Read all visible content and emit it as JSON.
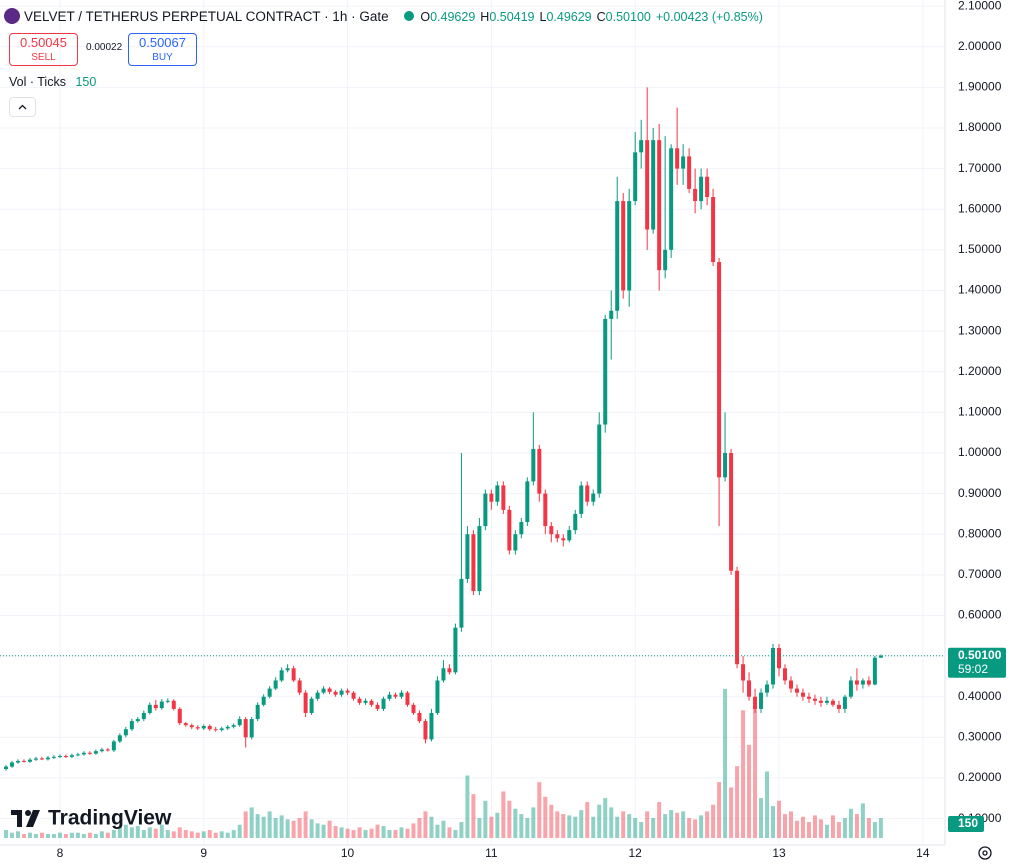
{
  "header": {
    "title": "VELVET / TETHERUS PERPETUAL CONTRACT · 1h · Gate",
    "legend": [
      {
        "key": "O",
        "value": "0.49629"
      },
      {
        "key": "H",
        "value": "0.50419"
      },
      {
        "key": "L",
        "value": "0.49629"
      },
      {
        "key": "C",
        "value": "0.50100"
      }
    ],
    "change": "+0.00423 (+0.85%)",
    "sell": {
      "price": "0.50045",
      "label": "SELL"
    },
    "spread": "0.00022",
    "buy": {
      "price": "0.50067",
      "label": "BUY"
    },
    "volume_legend": "Vol · Ticks",
    "logo": "TradingView",
    "countdown": "59:02"
  },
  "chart_data": {
    "type": "candlestick",
    "up_color": "#089981",
    "down_color": "#f23645",
    "grid": true,
    "xlim": [
      -10,
      147.7
    ],
    "xticks": [
      {
        "value": 0,
        "label": "8"
      },
      {
        "value": 24,
        "label": "9"
      },
      {
        "value": 48,
        "label": "10"
      },
      {
        "value": 72,
        "label": "11"
      },
      {
        "value": 96,
        "label": "12"
      },
      {
        "value": 120,
        "label": "13"
      },
      {
        "value": 144,
        "label": "14"
      }
    ],
    "ylim": [
      0.035,
      2.115
    ],
    "yticks": [
      {
        "value": 0.1,
        "label": "0.10000"
      },
      {
        "value": 0.2,
        "label": "0.20000"
      },
      {
        "value": 0.3,
        "label": "0.30000"
      },
      {
        "value": 0.4,
        "label": "0.40000"
      },
      {
        "value": 0.5,
        "label": "0.50000"
      },
      {
        "value": 0.6,
        "label": "0.60000"
      },
      {
        "value": 0.7,
        "label": "0.70000"
      },
      {
        "value": 0.8,
        "label": "0.80000"
      },
      {
        "value": 0.9,
        "label": "0.90000"
      },
      {
        "value": 1.0,
        "label": "1.00000"
      },
      {
        "value": 1.1,
        "label": "1.10000"
      },
      {
        "value": 1.2,
        "label": "1.20000"
      },
      {
        "value": 1.3,
        "label": "1.30000"
      },
      {
        "value": 1.4,
        "label": "1.40000"
      },
      {
        "value": 1.5,
        "label": "1.50000"
      },
      {
        "value": 1.6,
        "label": "1.60000"
      },
      {
        "value": 1.7,
        "label": "1.70000"
      },
      {
        "value": 1.8,
        "label": "1.80000"
      },
      {
        "value": 1.9,
        "label": "1.90000"
      },
      {
        "value": 2.0,
        "label": "2.00000"
      },
      {
        "value": 2.1,
        "label": "2.10000"
      }
    ],
    "volume_ylim": [
      0,
      6300
    ],
    "last_price": {
      "value": 0.501,
      "label": "0.50100"
    },
    "x": [
      -9,
      -8,
      -7,
      -6,
      -5,
      -4,
      -3,
      -2,
      -1,
      0,
      1,
      2,
      3,
      4,
      5,
      6,
      7,
      8,
      9,
      10,
      11,
      12,
      13,
      14,
      15,
      16,
      17,
      18,
      19,
      20,
      21,
      22,
      23,
      24,
      25,
      26,
      27,
      28,
      29,
      30,
      31,
      32,
      33,
      34,
      35,
      36,
      37,
      38,
      39,
      40,
      41,
      42,
      43,
      44,
      45,
      46,
      47,
      48,
      49,
      50,
      51,
      52,
      53,
      54,
      55,
      56,
      57,
      58,
      59,
      60,
      61,
      62,
      63,
      64,
      65,
      66,
      67,
      68,
      69,
      70,
      71,
      72,
      73,
      74,
      75,
      76,
      77,
      78,
      79,
      80,
      81,
      82,
      83,
      84,
      85,
      86,
      87,
      88,
      89,
      90,
      91,
      92,
      93,
      94,
      95,
      96,
      97,
      98,
      99,
      100,
      101,
      102,
      103,
      104,
      105,
      106,
      107,
      108,
      109,
      110,
      111,
      112,
      113,
      114,
      115,
      116,
      117,
      118,
      119,
      120,
      121,
      122,
      123,
      124,
      125,
      126,
      127,
      128,
      129,
      130,
      131,
      132,
      133,
      134,
      135,
      136,
      137
    ],
    "open": [
      0.222,
      0.228,
      0.238,
      0.242,
      0.24,
      0.245,
      0.248,
      0.246,
      0.25,
      0.252,
      0.254,
      0.252,
      0.256,
      0.258,
      0.262,
      0.26,
      0.266,
      0.27,
      0.268,
      0.29,
      0.305,
      0.32,
      0.34,
      0.345,
      0.36,
      0.38,
      0.372,
      0.388,
      0.39,
      0.37,
      0.335,
      0.33,
      0.325,
      0.322,
      0.328,
      0.32,
      0.318,
      0.322,
      0.326,
      0.33,
      0.345,
      0.3,
      0.345,
      0.38,
      0.4,
      0.42,
      0.44,
      0.465,
      0.47,
      0.44,
      0.41,
      0.36,
      0.395,
      0.41,
      0.42,
      0.412,
      0.405,
      0.415,
      0.41,
      0.395,
      0.385,
      0.39,
      0.38,
      0.37,
      0.395,
      0.405,
      0.4,
      0.41,
      0.38,
      0.36,
      0.34,
      0.295,
      0.36,
      0.44,
      0.47,
      0.46,
      0.57,
      0.69,
      0.8,
      0.66,
      0.82,
      0.9,
      0.88,
      0.92,
      0.86,
      0.76,
      0.8,
      0.83,
      0.93,
      1.01,
      0.9,
      0.82,
      0.8,
      0.79,
      0.785,
      0.81,
      0.85,
      0.92,
      0.88,
      0.9,
      1.07,
      1.33,
      1.35,
      1.62,
      1.4,
      1.62,
      1.74,
      1.77,
      1.55,
      1.77,
      1.45,
      1.5,
      1.75,
      1.7,
      1.73,
      1.65,
      1.62,
      1.68,
      1.63,
      1.47,
      0.94,
      1.0,
      0.71,
      0.48,
      0.44,
      0.4,
      0.37,
      0.41,
      0.43,
      0.52,
      0.47,
      0.44,
      0.42,
      0.41,
      0.4,
      0.395,
      0.39,
      0.385,
      0.39,
      0.38,
      0.37,
      0.4,
      0.44,
      0.43,
      0.44,
      0.43,
      0.496
    ],
    "high": [
      0.232,
      0.242,
      0.246,
      0.246,
      0.249,
      0.252,
      0.252,
      0.254,
      0.256,
      0.258,
      0.258,
      0.26,
      0.262,
      0.266,
      0.266,
      0.27,
      0.274,
      0.274,
      0.294,
      0.31,
      0.326,
      0.346,
      0.35,
      0.366,
      0.386,
      0.392,
      0.394,
      0.396,
      0.394,
      0.374,
      0.338,
      0.334,
      0.33,
      0.332,
      0.332,
      0.326,
      0.326,
      0.33,
      0.334,
      0.352,
      0.35,
      0.35,
      0.386,
      0.406,
      0.426,
      0.448,
      0.472,
      0.48,
      0.476,
      0.446,
      0.416,
      0.4,
      0.416,
      0.426,
      0.424,
      0.416,
      0.42,
      0.42,
      0.414,
      0.4,
      0.396,
      0.394,
      0.386,
      0.4,
      0.412,
      0.41,
      0.416,
      0.414,
      0.385,
      0.366,
      0.345,
      0.37,
      0.45,
      0.49,
      0.48,
      0.58,
      1.0,
      0.82,
      0.81,
      0.84,
      0.91,
      0.91,
      0.93,
      0.93,
      0.87,
      0.81,
      0.84,
      0.94,
      1.1,
      1.02,
      0.91,
      0.83,
      0.81,
      0.8,
      0.82,
      0.86,
      0.93,
      0.93,
      0.91,
      1.1,
      1.34,
      1.4,
      1.68,
      1.64,
      1.65,
      1.79,
      1.82,
      1.9,
      1.8,
      1.81,
      1.78,
      1.76,
      1.85,
      1.76,
      1.75,
      1.7,
      1.7,
      1.7,
      1.65,
      1.48,
      1.1,
      1.01,
      0.72,
      0.5,
      0.46,
      0.42,
      0.42,
      0.44,
      0.53,
      0.53,
      0.48,
      0.45,
      0.43,
      0.42,
      0.41,
      0.405,
      0.4,
      0.4,
      0.395,
      0.39,
      0.405,
      0.45,
      0.47,
      0.445,
      0.45,
      0.5,
      0.504
    ],
    "low": [
      0.218,
      0.225,
      0.235,
      0.238,
      0.237,
      0.242,
      0.244,
      0.243,
      0.247,
      0.249,
      0.249,
      0.249,
      0.253,
      0.255,
      0.257,
      0.257,
      0.263,
      0.265,
      0.264,
      0.286,
      0.3,
      0.316,
      0.336,
      0.34,
      0.356,
      0.366,
      0.368,
      0.384,
      0.366,
      0.33,
      0.326,
      0.32,
      0.318,
      0.318,
      0.316,
      0.314,
      0.314,
      0.318,
      0.322,
      0.326,
      0.275,
      0.295,
      0.34,
      0.376,
      0.396,
      0.416,
      0.436,
      0.46,
      0.436,
      0.404,
      0.35,
      0.355,
      0.39,
      0.406,
      0.406,
      0.4,
      0.4,
      0.404,
      0.39,
      0.38,
      0.38,
      0.375,
      0.365,
      0.365,
      0.39,
      0.395,
      0.395,
      0.375,
      0.355,
      0.335,
      0.285,
      0.29,
      0.355,
      0.435,
      0.455,
      0.455,
      0.56,
      0.68,
      0.65,
      0.65,
      0.81,
      0.86,
      0.87,
      0.85,
      0.75,
      0.75,
      0.79,
      0.82,
      0.92,
      0.88,
      0.8,
      0.78,
      0.78,
      0.77,
      0.78,
      0.8,
      0.84,
      0.87,
      0.87,
      0.89,
      1.05,
      1.23,
      1.33,
      1.38,
      1.36,
      1.61,
      1.7,
      1.5,
      1.54,
      1.4,
      1.43,
      1.48,
      1.66,
      1.66,
      1.64,
      1.59,
      1.6,
      1.61,
      1.46,
      0.82,
      0.93,
      0.7,
      0.47,
      0.41,
      0.39,
      0.36,
      0.36,
      0.4,
      0.42,
      0.45,
      0.43,
      0.41,
      0.4,
      0.39,
      0.385,
      0.38,
      0.375,
      0.38,
      0.375,
      0.36,
      0.36,
      0.395,
      0.415,
      0.42,
      0.425,
      0.428,
      0.496
    ],
    "close": [
      0.228,
      0.238,
      0.242,
      0.24,
      0.245,
      0.248,
      0.246,
      0.25,
      0.252,
      0.254,
      0.252,
      0.256,
      0.258,
      0.262,
      0.26,
      0.266,
      0.27,
      0.268,
      0.29,
      0.305,
      0.32,
      0.34,
      0.345,
      0.36,
      0.38,
      0.372,
      0.388,
      0.39,
      0.37,
      0.335,
      0.33,
      0.325,
      0.322,
      0.328,
      0.32,
      0.318,
      0.322,
      0.326,
      0.33,
      0.345,
      0.3,
      0.345,
      0.38,
      0.4,
      0.42,
      0.44,
      0.465,
      0.47,
      0.44,
      0.41,
      0.36,
      0.395,
      0.41,
      0.42,
      0.412,
      0.405,
      0.415,
      0.41,
      0.395,
      0.385,
      0.39,
      0.38,
      0.37,
      0.395,
      0.405,
      0.4,
      0.41,
      0.38,
      0.36,
      0.34,
      0.295,
      0.36,
      0.44,
      0.47,
      0.46,
      0.57,
      0.69,
      0.8,
      0.66,
      0.82,
      0.9,
      0.88,
      0.92,
      0.86,
      0.76,
      0.8,
      0.83,
      0.93,
      1.01,
      0.9,
      0.82,
      0.8,
      0.79,
      0.785,
      0.81,
      0.85,
      0.92,
      0.88,
      0.9,
      1.07,
      1.33,
      1.35,
      1.62,
      1.4,
      1.62,
      1.74,
      1.77,
      1.55,
      1.77,
      1.45,
      1.5,
      1.75,
      1.7,
      1.73,
      1.65,
      1.62,
      1.68,
      1.63,
      1.47,
      0.94,
      1.0,
      0.71,
      0.48,
      0.44,
      0.4,
      0.37,
      0.41,
      0.43,
      0.52,
      0.47,
      0.44,
      0.42,
      0.41,
      0.4,
      0.395,
      0.39,
      0.385,
      0.39,
      0.38,
      0.37,
      0.4,
      0.44,
      0.43,
      0.44,
      0.43,
      0.496,
      0.501
    ],
    "volume": [
      60,
      40,
      50,
      30,
      40,
      30,
      40,
      30,
      30,
      40,
      30,
      40,
      40,
      30,
      40,
      30,
      50,
      40,
      60,
      80,
      100,
      80,
      90,
      60,
      80,
      70,
      100,
      60,
      50,
      80,
      60,
      50,
      40,
      50,
      60,
      40,
      50,
      40,
      60,
      100,
      200,
      230,
      180,
      160,
      200,
      150,
      170,
      140,
      130,
      150,
      200,
      140,
      110,
      100,
      130,
      90,
      80,
      70,
      60,
      80,
      60,
      70,
      100,
      90,
      60,
      60,
      80,
      70,
      110,
      150,
      200,
      160,
      100,
      130,
      80,
      60,
      120,
      470,
      330,
      150,
      280,
      160,
      190,
      350,
      280,
      220,
      180,
      150,
      230,
      420,
      310,
      250,
      200,
      180,
      170,
      160,
      210,
      270,
      160,
      250,
      300,
      230,
      160,
      200,
      180,
      150,
      120,
      200,
      150,
      270,
      180,
      210,
      190,
      200,
      150,
      140,
      170,
      200,
      250,
      420,
      1120,
      380,
      540,
      960,
      700,
      1000,
      300,
      500,
      240,
      280,
      180,
      200,
      130,
      160,
      120,
      170,
      140,
      100,
      170,
      120,
      150,
      220,
      180,
      260,
      150,
      120,
      150
    ]
  }
}
